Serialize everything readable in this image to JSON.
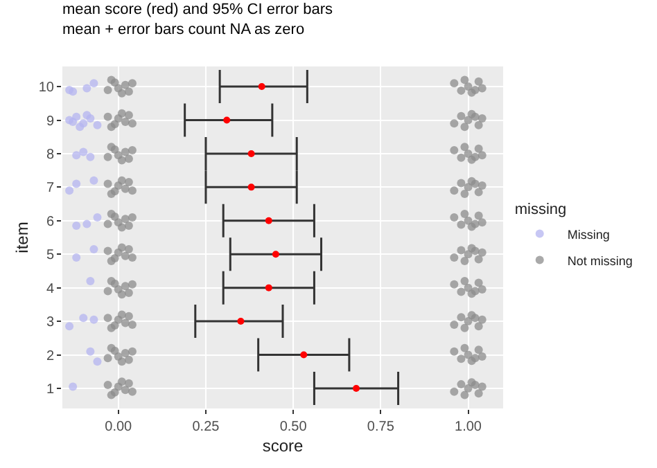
{
  "chart_data": {
    "type": "scatter",
    "title": "mean score (red) and 95% CI error bars\nmean + error bars count NA as zero",
    "xlabel": "score",
    "ylabel": "item",
    "legend_title": "missing",
    "legend": "right",
    "grid": true,
    "marker": "circle",
    "xlim": [
      -0.16,
      1.1
    ],
    "xticks": [
      {
        "value": 0,
        "label": "0.00"
      },
      {
        "value": 0.25,
        "label": "0.25"
      },
      {
        "value": 0.5,
        "label": "0.50"
      },
      {
        "value": 0.75,
        "label": "0.75"
      },
      {
        "value": 1,
        "label": "1.00"
      }
    ],
    "ylim": [
      0.4,
      10.6
    ],
    "yticks": [
      1,
      2,
      3,
      4,
      5,
      6,
      7,
      8,
      9,
      10
    ],
    "series": [
      {
        "name": "Missing",
        "color": "#b4b4f0",
        "x": [
          -0.14,
          -0.13,
          -0.09,
          -0.07,
          -0.14,
          -0.12,
          -0.1,
          -0.08,
          -0.06,
          -0.13,
          -0.09,
          -0.11,
          -0.12,
          -0.1,
          -0.08,
          -0.14,
          -0.12,
          -0.07,
          -0.12,
          -0.09,
          -0.06,
          -0.12,
          -0.07,
          -0.08,
          -0.14,
          -0.1,
          -0.07,
          -0.08,
          -0.06,
          -0.13
        ],
        "values": [
          9.9,
          9.85,
          9.95,
          10.1,
          9.0,
          9.1,
          8.9,
          9.05,
          8.85,
          8.95,
          9.15,
          8.8,
          7.95,
          8.05,
          7.9,
          6.9,
          7.1,
          7.2,
          5.85,
          5.9,
          6.1,
          4.9,
          5.15,
          4.2,
          2.85,
          3.1,
          3.05,
          2.1,
          1.8,
          1.05
        ]
      },
      {
        "name": "Not missing",
        "color": "#8c8c8c",
        "x": [
          -0.03,
          -0.01,
          0.0,
          0.02,
          0.03,
          0.04,
          -0.02,
          0.01,
          0.96,
          0.98,
          1.0,
          1.01,
          1.03,
          1.04,
          0.99,
          1.02,
          -0.03,
          -0.01,
          0.0,
          0.02,
          0.03,
          0.04,
          -0.02,
          0.01,
          0.96,
          0.98,
          1.0,
          1.01,
          1.03,
          1.04,
          0.99,
          1.02,
          -0.03,
          -0.01,
          0.0,
          0.02,
          0.03,
          0.04,
          -0.02,
          0.01,
          0.96,
          0.98,
          1.0,
          1.01,
          1.03,
          1.04,
          0.99,
          1.02,
          -0.03,
          -0.01,
          0.0,
          0.02,
          0.03,
          0.04,
          -0.02,
          0.01,
          0.96,
          0.98,
          1.0,
          1.01,
          1.03,
          1.04,
          0.99,
          1.02,
          -0.03,
          -0.01,
          0.0,
          0.02,
          0.03,
          0.04,
          -0.02,
          0.01,
          0.96,
          0.98,
          1.0,
          1.01,
          1.03,
          1.04,
          0.99,
          1.02,
          -0.03,
          -0.01,
          0.0,
          0.02,
          0.03,
          0.04,
          -0.02,
          0.01,
          0.96,
          0.98,
          1.0,
          1.01,
          1.03,
          1.04,
          0.99,
          1.02,
          -0.03,
          -0.01,
          0.0,
          0.02,
          0.03,
          0.04,
          -0.02,
          0.01,
          0.96,
          0.98,
          1.0,
          1.01,
          1.03,
          1.04,
          0.99,
          1.02,
          -0.03,
          -0.01,
          0.0,
          0.02,
          0.03,
          0.04,
          -0.02,
          0.01,
          0.96,
          0.98,
          1.0,
          1.01,
          1.03,
          1.04,
          0.99,
          1.02,
          -0.03,
          -0.01,
          0.0,
          0.02,
          0.03,
          0.04,
          -0.02,
          0.01,
          0.96,
          0.98,
          1.0,
          1.01,
          1.03,
          1.04,
          0.99,
          1.02,
          -0.03,
          -0.01,
          0.0,
          0.02,
          0.03,
          0.04,
          -0.02,
          0.01,
          0.96,
          0.98,
          1.0,
          1.01,
          1.03,
          1.04,
          0.99,
          1.02
        ],
        "values": [
          1.1,
          0.88,
          1.05,
          0.95,
          1.15,
          0.9,
          0.8,
          1.2,
          0.9,
          1.12,
          1.0,
          1.18,
          0.85,
          1.05,
          0.8,
          1.1,
          1.9,
          2.12,
          1.95,
          2.05,
          1.85,
          2.1,
          2.2,
          1.8,
          2.1,
          1.88,
          2.0,
          1.82,
          2.15,
          1.95,
          2.2,
          1.9,
          3.1,
          2.88,
          3.05,
          2.95,
          3.15,
          2.9,
          2.8,
          3.2,
          2.9,
          3.12,
          3.0,
          3.18,
          2.85,
          3.05,
          2.8,
          3.1,
          3.9,
          4.12,
          3.95,
          4.05,
          3.85,
          4.1,
          4.2,
          3.8,
          4.1,
          3.88,
          4.0,
          3.82,
          4.15,
          3.95,
          4.2,
          3.9,
          5.1,
          4.88,
          5.05,
          4.95,
          5.15,
          4.9,
          4.8,
          5.2,
          4.9,
          5.12,
          5.0,
          5.18,
          4.85,
          5.05,
          4.8,
          5.1,
          5.9,
          6.12,
          5.95,
          6.05,
          5.85,
          6.1,
          6.2,
          5.8,
          6.1,
          5.88,
          6.0,
          5.82,
          6.15,
          5.95,
          6.2,
          5.9,
          7.1,
          6.88,
          7.05,
          6.95,
          7.15,
          6.9,
          6.8,
          7.2,
          6.9,
          7.12,
          7.0,
          7.18,
          6.85,
          7.05,
          6.8,
          7.1,
          7.9,
          8.12,
          7.95,
          8.05,
          7.85,
          8.1,
          8.2,
          7.8,
          8.1,
          7.88,
          8.0,
          7.82,
          8.15,
          7.95,
          8.2,
          7.9,
          9.1,
          8.88,
          9.05,
          8.95,
          9.15,
          8.9,
          8.8,
          9.2,
          8.9,
          9.12,
          9.0,
          9.18,
          8.85,
          9.05,
          8.8,
          9.1,
          9.9,
          10.12,
          9.95,
          10.05,
          9.85,
          10.1,
          10.2,
          9.8,
          10.1,
          9.88,
          10.0,
          9.82,
          10.15,
          9.95,
          10.2,
          9.9
        ]
      },
      {
        "color": "#ff0000",
        "x": [
          0.68,
          0.53,
          0.35,
          0.43,
          0.45,
          0.43,
          0.38,
          0.38,
          0.31,
          0.41
        ],
        "values": [
          1,
          2,
          3,
          4,
          5,
          6,
          7,
          8,
          9,
          10
        ],
        "xerrors": [
          [
            0.56,
            0.8
          ],
          [
            0.4,
            0.66
          ],
          [
            0.22,
            0.47
          ],
          [
            0.3,
            0.56
          ],
          [
            0.32,
            0.58
          ],
          [
            0.3,
            0.56
          ],
          [
            0.25,
            0.51
          ],
          [
            0.25,
            0.51
          ],
          [
            0.19,
            0.44
          ],
          [
            0.29,
            0.54
          ]
        ]
      }
    ]
  }
}
